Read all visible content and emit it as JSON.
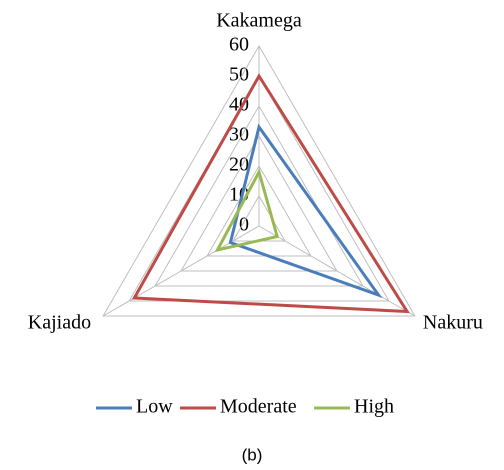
{
  "chart_data": {
    "type": "radar",
    "caption": "(b)",
    "categories": [
      "Kakamega",
      "Nakuru",
      "Kajiado"
    ],
    "series": [
      {
        "name": "Low",
        "color": "#4a7ebb",
        "values": [
          33,
          46,
          11
        ]
      },
      {
        "name": "Moderate",
        "color": "#be4b48",
        "values": [
          50,
          57,
          48
        ]
      },
      {
        "name": "High",
        "color": "#98b954",
        "values": [
          18,
          7,
          16
        ]
      }
    ],
    "rlim": [
      0,
      60
    ],
    "rticks": [
      0,
      10,
      20,
      30,
      40,
      50,
      60
    ],
    "grid": true,
    "legend": "bottom"
  }
}
